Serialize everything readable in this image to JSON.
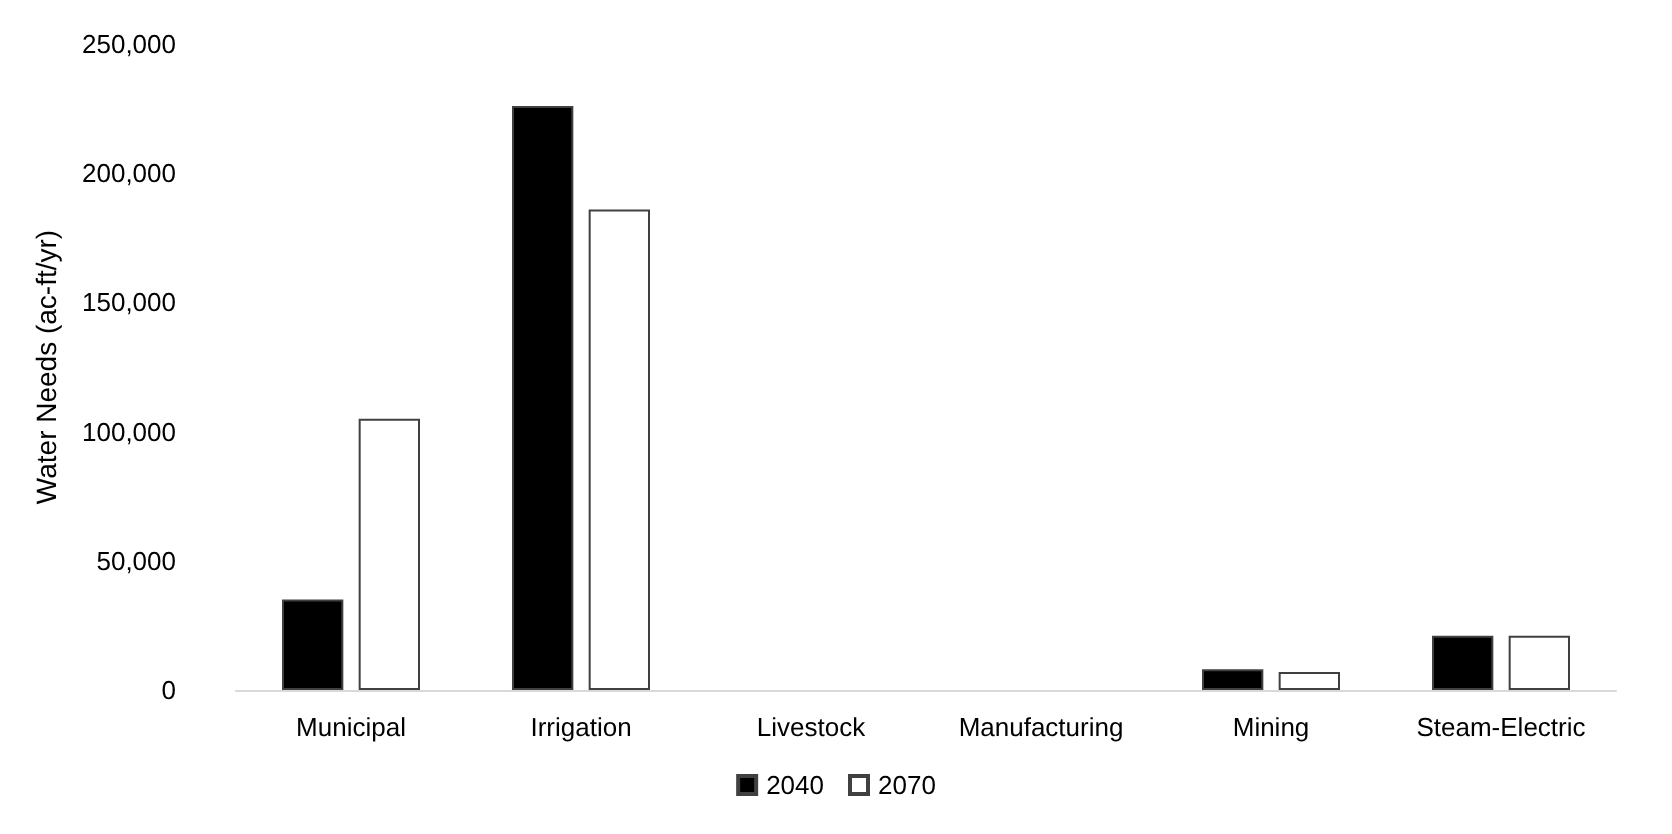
{
  "chart_data": {
    "type": "bar",
    "ylabel": "Water Needs (ac-ft/yr)",
    "categories": [
      "Municipal",
      "Irrigation",
      "Livestock",
      "Manufacturing",
      "Mining",
      "Steam-Electric"
    ],
    "series": [
      {
        "name": "2040",
        "color": "#000000",
        "values": [
          35000,
          226000,
          0,
          0,
          8000,
          21000
        ]
      },
      {
        "name": "2070",
        "color": "#ffffff",
        "values": [
          105000,
          186000,
          0,
          0,
          7000,
          21000
        ]
      }
    ],
    "ylim": [
      0,
      250000
    ],
    "yticks": [
      0,
      {
        "value": 50000,
        "label": "50,000"
      },
      {
        "value": 100000,
        "label": "100,000"
      },
      {
        "value": 150000,
        "label": "150,000"
      },
      {
        "value": 200000,
        "label": "200,000"
      },
      {
        "value": 250000,
        "label": "250,000"
      }
    ],
    "grid": false,
    "legend": "bottom"
  }
}
